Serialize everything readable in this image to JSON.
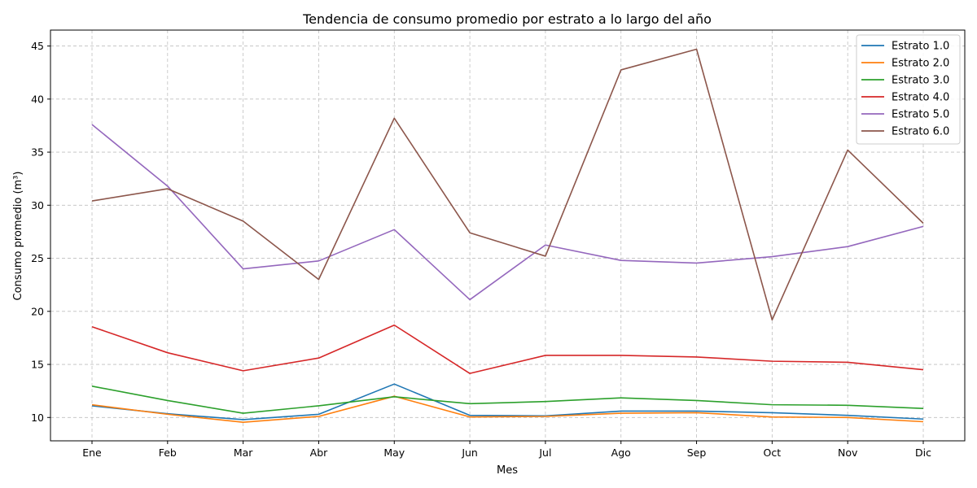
{
  "chart_data": {
    "type": "line",
    "title": "Tendencia de consumo promedio por estrato a lo largo del año",
    "xlabel": "Mes",
    "ylabel": "Consumo promedio (m³)",
    "categories": [
      "Ene",
      "Feb",
      "Mar",
      "Abr",
      "May",
      "Jun",
      "Jul",
      "Ago",
      "Sep",
      "Oct",
      "Nov",
      "Dic"
    ],
    "ylim": [
      7.8,
      46.5
    ],
    "yticks": [
      10,
      15,
      20,
      25,
      30,
      35,
      40,
      45
    ],
    "grid": true,
    "legend_position": "top-right",
    "series": [
      {
        "name": "Estrato 1.0",
        "color": "#1f77b4",
        "values": [
          11.1,
          10.35,
          9.8,
          10.3,
          13.15,
          10.2,
          10.15,
          10.6,
          10.6,
          10.45,
          10.2,
          9.85
        ]
      },
      {
        "name": "Estrato 2.0",
        "color": "#ff7f0e",
        "values": [
          11.2,
          10.3,
          9.55,
          10.1,
          12.0,
          10.05,
          10.1,
          10.4,
          10.45,
          10.05,
          10.0,
          9.6
        ]
      },
      {
        "name": "Estrato 3.0",
        "color": "#2ca02c",
        "values": [
          12.95,
          11.6,
          10.4,
          11.1,
          11.95,
          11.3,
          11.5,
          11.85,
          11.6,
          11.2,
          11.15,
          10.85
        ]
      },
      {
        "name": "Estrato 4.0",
        "color": "#d62728",
        "values": [
          18.55,
          16.1,
          14.4,
          15.6,
          18.7,
          14.15,
          15.85,
          15.85,
          15.7,
          15.3,
          15.2,
          14.5
        ]
      },
      {
        "name": "Estrato 5.0",
        "color": "#9467bd",
        "values": [
          37.6,
          31.8,
          24.0,
          24.75,
          27.7,
          21.1,
          26.25,
          24.8,
          24.55,
          25.15,
          26.1,
          28.0
        ]
      },
      {
        "name": "Estrato 6.0",
        "color": "#8c564b",
        "values": [
          30.4,
          31.55,
          28.5,
          23.0,
          38.2,
          27.4,
          25.2,
          42.75,
          44.7,
          19.2,
          35.2,
          28.3
        ]
      }
    ]
  }
}
